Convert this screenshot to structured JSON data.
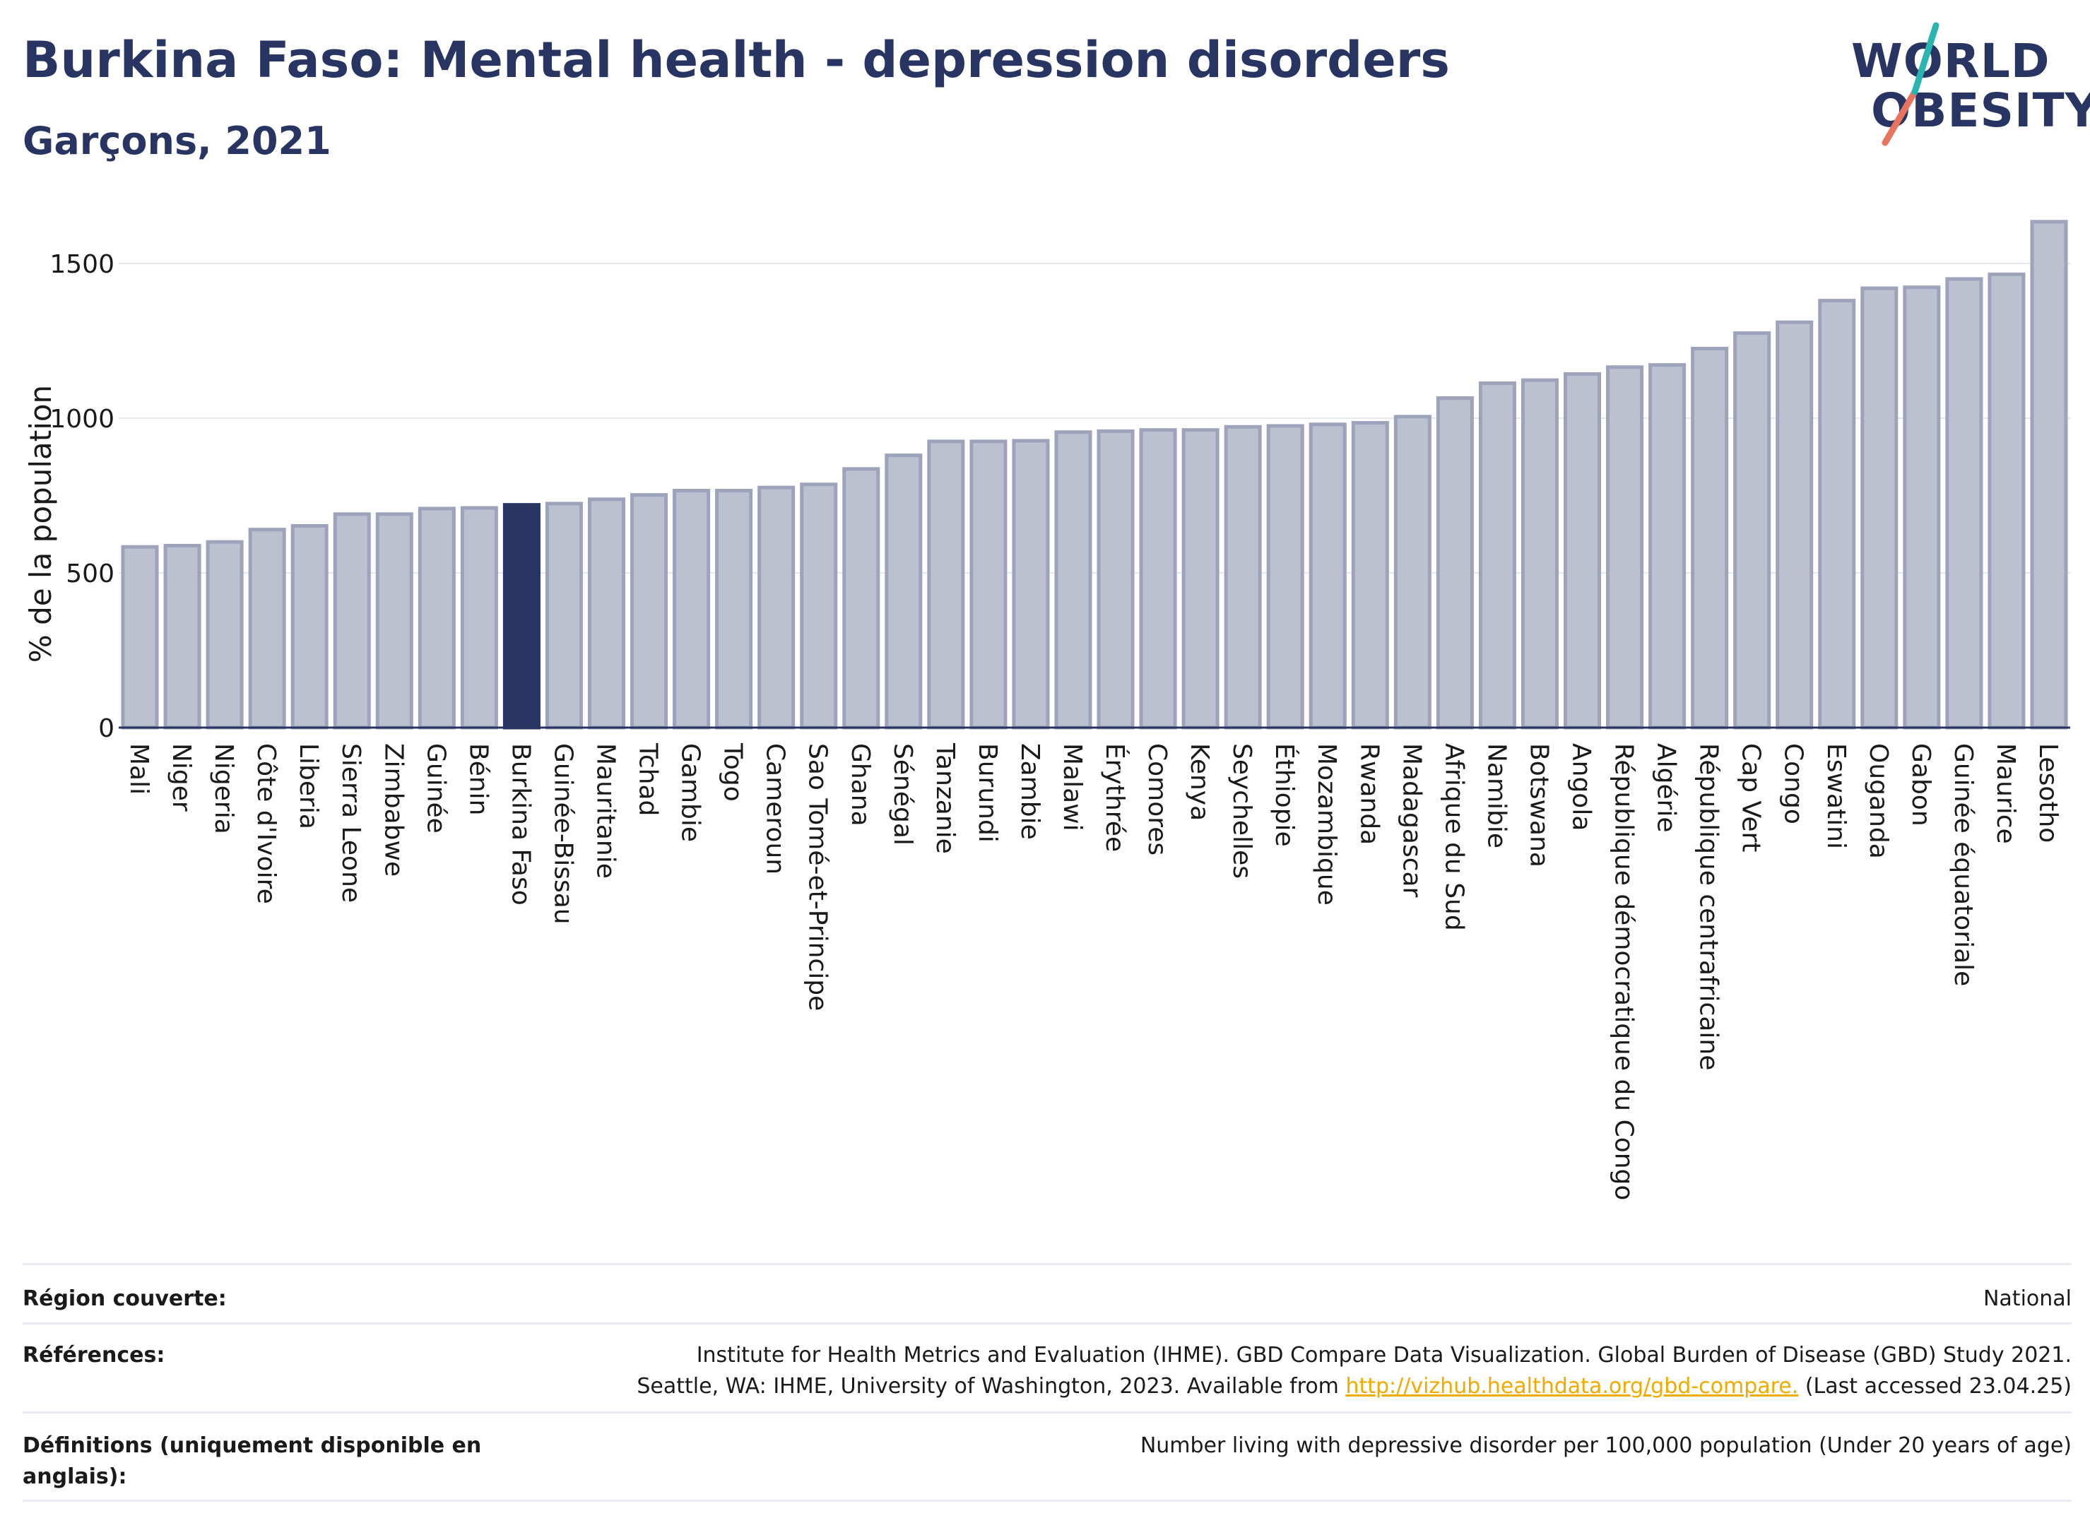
{
  "header": {
    "title": "Burkina Faso: Mental health - depression disorders",
    "subtitle": "Garçons, 2021"
  },
  "logo": {
    "line1": "WORLD",
    "line2": "OBESITY"
  },
  "colors": {
    "highlight": "#283563",
    "bar_fill": "#bcc1cf",
    "bar_stroke": "#9da3bb",
    "text_dark": "#283563",
    "link": "#f2a900"
  },
  "chart_data": {
    "type": "bar",
    "title": "Burkina Faso: Mental health - depression disorders",
    "subtitle": "Garçons, 2021",
    "ylabel": "% de la population",
    "xlabel": "",
    "ylim": [
      0,
      1650
    ],
    "yticks": [
      0,
      500,
      1000,
      1500
    ],
    "grid": true,
    "highlight": "Burkina Faso",
    "categories": [
      "Mali",
      "Niger",
      "Nigeria",
      "Côte d'Ivoire",
      "Liberia",
      "Sierra Leone",
      "Zimbabwe",
      "Guinée",
      "Bénin",
      "Burkina Faso",
      "Guinée-Bissau",
      "Mauritanie",
      "Tchad",
      "Gambie",
      "Togo",
      "Cameroun",
      "Sao Tomé-et-Principe",
      "Ghana",
      "Sénégal",
      "Tanzanie",
      "Burundi",
      "Zambie",
      "Malawi",
      "Érythrée",
      "Comores",
      "Kenya",
      "Seychelles",
      "Éthiopie",
      "Mozambique",
      "Rwanda",
      "Madagascar",
      "Afrique du Sud",
      "Namibie",
      "Botswana",
      "Angola",
      "République démocratique du Congo",
      "Algérie",
      "République centrafricaine",
      "Cap Vert",
      "Congo",
      "Eswatini",
      "Ouganda",
      "Gabon",
      "Guinée équatoriale",
      "Maurice",
      "Lesotho"
    ],
    "values": [
      584,
      588,
      600,
      640,
      652,
      690,
      690,
      708,
      710,
      720,
      724,
      738,
      752,
      766,
      766,
      776,
      786,
      836,
      880,
      925,
      925,
      927,
      955,
      958,
      962,
      962,
      972,
      975,
      980,
      985,
      1005,
      1065,
      1113,
      1123,
      1143,
      1165,
      1172,
      1225,
      1275,
      1310,
      1380,
      1420,
      1423,
      1450,
      1465,
      1635
    ]
  },
  "footer": {
    "region_label": "Région couverte:",
    "region_value": "National",
    "references_label": "Références:",
    "references_line1": "Institute for Health Metrics and Evaluation (IHME). GBD Compare Data Visualization. Global Burden of Disease (GBD) Study 2021.",
    "references_line2_pre": "Seattle, WA: IHME, University of Washington, 2023. Available from ",
    "references_link": "http://vizhub.healthdata.org/gbd-compare.",
    "references_line2_post": " (Last accessed 23.04.25)",
    "definitions_label": "Définitions (uniquement disponible en anglais):",
    "definitions_value": "Number living with depressive disorder per 100,000 population (Under 20 years of age)"
  }
}
